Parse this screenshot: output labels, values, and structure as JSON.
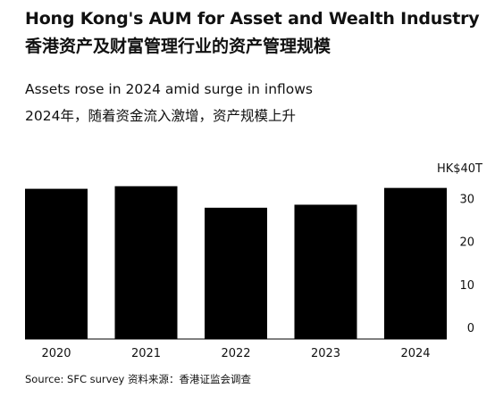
{
  "title_en": "Hong Kong's AUM for Asset and Wealth Industry",
  "title_zh": "香港资产及财富管理行业的资产管理规模",
  "subtitle_en": "Assets rose in 2024 amid surge in inflows",
  "subtitle_zh": "2024年，随着资金流入激增，资产规模上升",
  "source": "Source: SFC survey  资料来源：香港证监会调查",
  "chart_data": {
    "type": "bar",
    "categories": [
      "2020",
      "2021",
      "2022",
      "2023",
      "2024"
    ],
    "values": [
      34.9,
      35.5,
      30.5,
      31.2,
      35.1
    ],
    "unit_label": "HK$40T",
    "yticks": [
      {
        "value": 0,
        "label": "0"
      },
      {
        "value": 10,
        "label": "10"
      },
      {
        "value": 20,
        "label": "20"
      },
      {
        "value": 30,
        "label": "30"
      }
    ],
    "ylim": [
      0,
      40
    ],
    "bar_color": "#000000",
    "grid": false
  }
}
